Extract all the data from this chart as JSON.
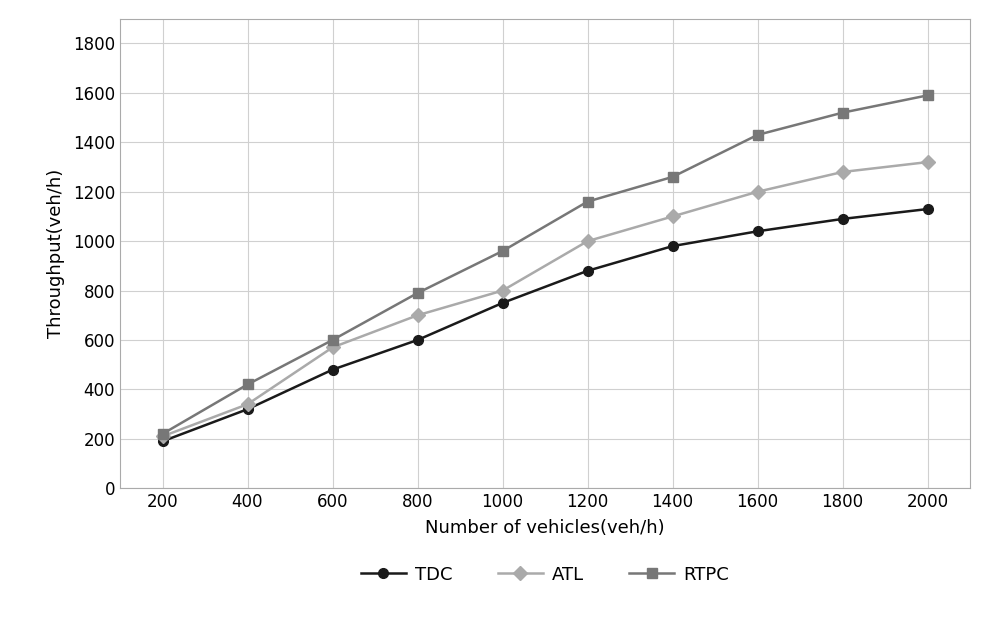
{
  "x": [
    200,
    400,
    600,
    800,
    1000,
    1200,
    1400,
    1600,
    1800,
    2000
  ],
  "TDC": [
    190,
    320,
    480,
    600,
    750,
    880,
    980,
    1040,
    1090,
    1130
  ],
  "ATL": [
    210,
    340,
    570,
    700,
    800,
    1000,
    1100,
    1200,
    1280,
    1320
  ],
  "RTPC": [
    220,
    420,
    600,
    790,
    960,
    1160,
    1260,
    1430,
    1520,
    1590
  ],
  "TDC_color": "#1a1a1a",
  "ATL_color": "#aaaaaa",
  "RTPC_color": "#777777",
  "xlabel": "Number of vehicles(veh/h)",
  "ylabel": "Throughput(veh/h)",
  "xlim": [
    100,
    2100
  ],
  "ylim": [
    0,
    1900
  ],
  "yticks": [
    0,
    200,
    400,
    600,
    800,
    1000,
    1200,
    1400,
    1600,
    1800
  ],
  "xticks": [
    200,
    400,
    600,
    800,
    1000,
    1200,
    1400,
    1600,
    1800,
    2000
  ],
  "legend_labels": [
    "TDC",
    "ATL",
    "RTPC"
  ],
  "background_color": "#ffffff",
  "grid_color": "#d0d0d0",
  "spine_color": "#aaaaaa",
  "linewidth": 1.8,
  "markersize": 7,
  "label_fontsize": 13,
  "tick_fontsize": 12,
  "legend_fontsize": 13
}
